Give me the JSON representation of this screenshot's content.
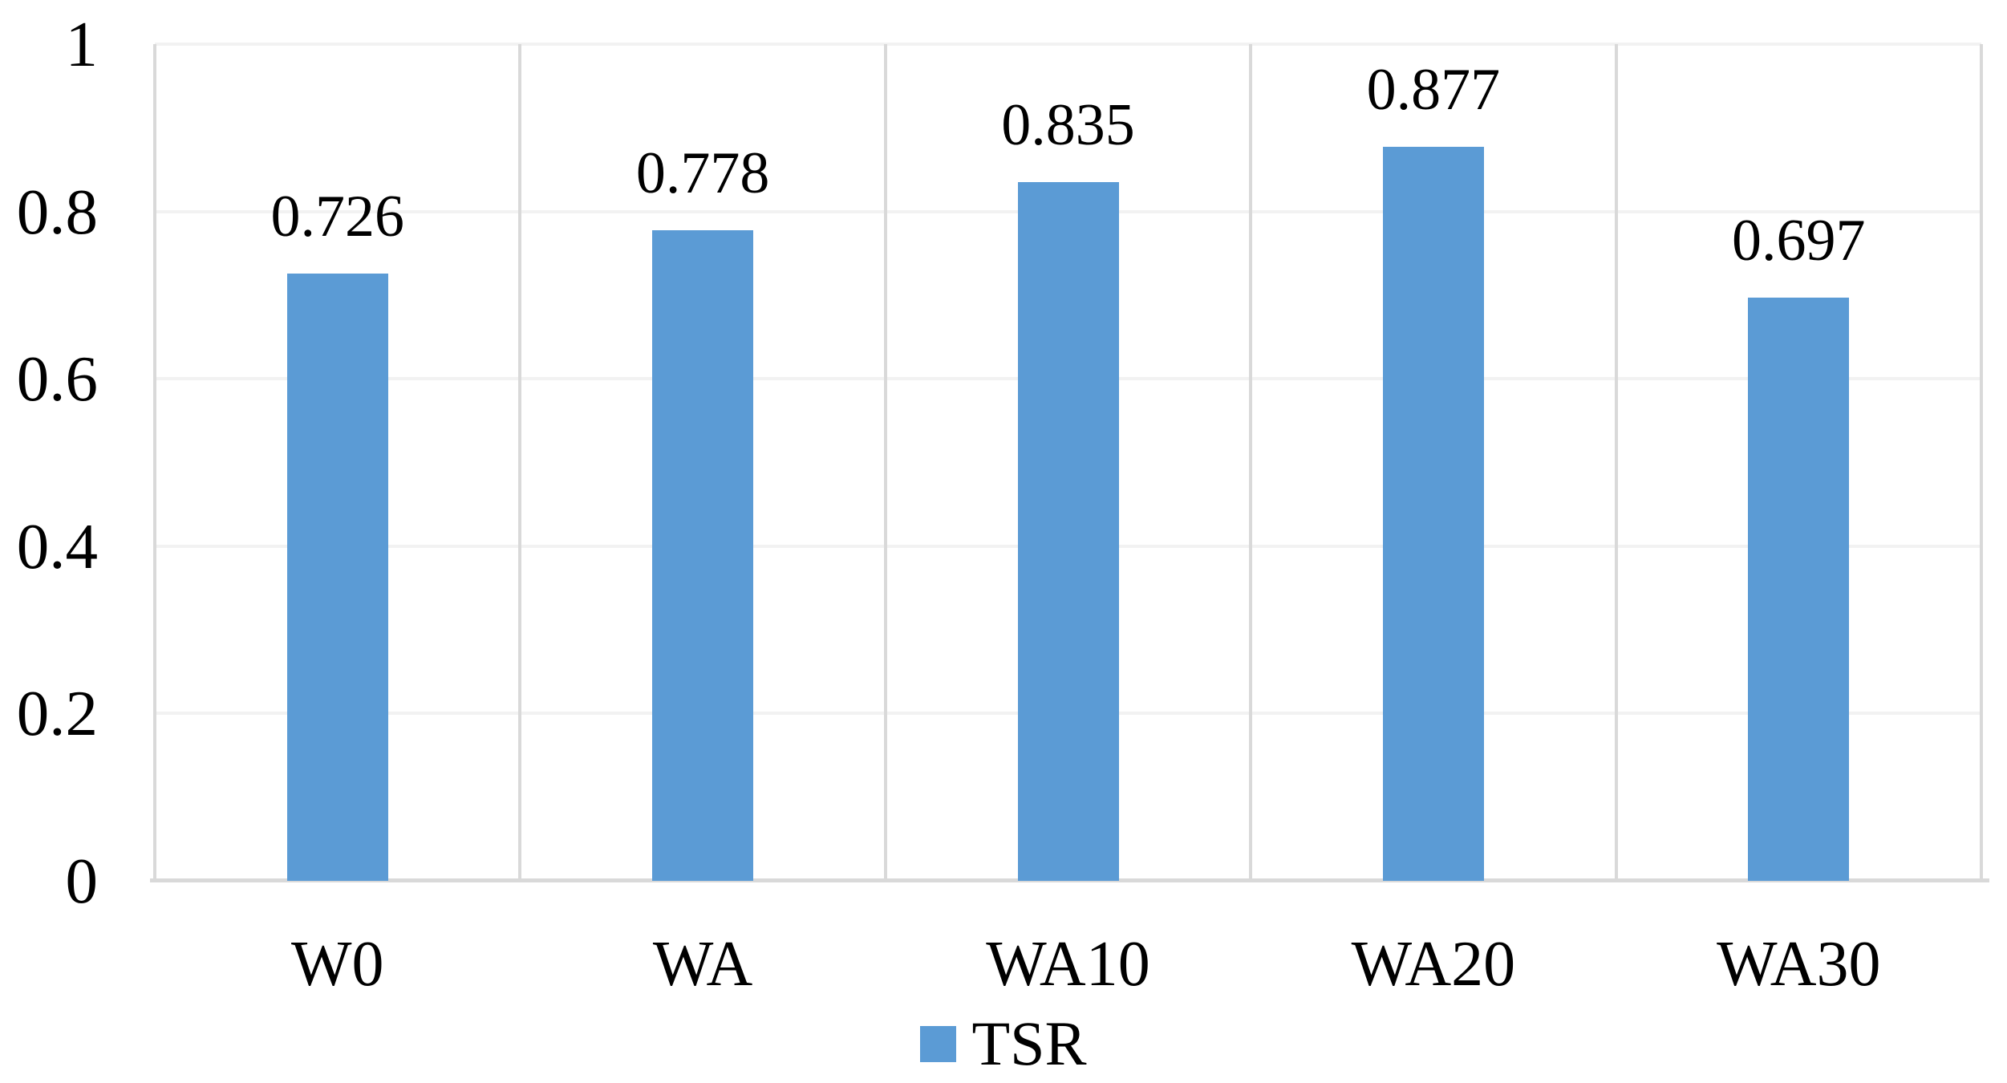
{
  "chart_data": {
    "type": "bar",
    "title": "",
    "xlabel": "",
    "ylabel": "",
    "categories": [
      "W0",
      "WA",
      "WA10",
      "WA20",
      "WA30"
    ],
    "series": [
      {
        "name": "TSR",
        "values": [
          0.726,
          0.778,
          0.835,
          0.877,
          0.697
        ]
      }
    ],
    "data_labels": [
      "0.726",
      "0.778",
      "0.835",
      "0.877",
      "0.697"
    ],
    "ylim": [
      0,
      1
    ],
    "yticks": [
      0,
      0.2,
      0.4,
      0.6,
      0.8,
      1
    ],
    "ytick_labels": [
      "0",
      "0.2",
      "0.4",
      "0.6",
      "0.8",
      "1"
    ],
    "grid": "horizontal gridlines at each y tick plus vertical category separator lines",
    "legend_position": "bottom-center",
    "colors": {
      "bar": "#5B9BD5",
      "horizontal_gridline": "#F2F2F2",
      "vertical_gridline": "#D9D9D9",
      "axis_line": "#D9D9D9",
      "text": "#000000",
      "background": "#FFFFFF"
    }
  }
}
